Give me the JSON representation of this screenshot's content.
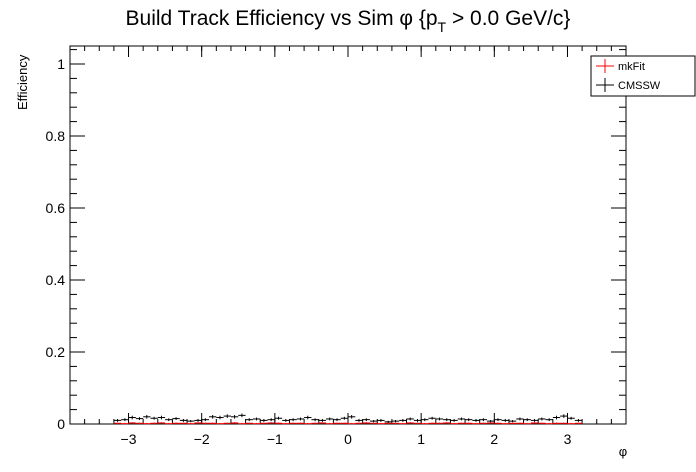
{
  "chart_data": {
    "type": "scatter",
    "title": "Build Track Efficiency vs Sim φ {p_T > 0.0 GeV/c}",
    "title_parts": {
      "main": "Build Track Efficiency vs Sim φ {p",
      "sub": "T",
      "rest": " > 0.0 GeV/c}"
    },
    "xlabel": "φ",
    "ylabel": "Efficiency",
    "xlim": [
      -3.8,
      3.8
    ],
    "ylim": [
      0,
      1.05
    ],
    "xticks": [
      -3,
      -2,
      -1,
      0,
      1,
      2,
      3
    ],
    "xtick_labels": [
      "−3",
      "−2",
      "−1",
      "0",
      "1",
      "2",
      "3"
    ],
    "yticks": [
      0,
      0.2,
      0.4,
      0.6,
      0.8,
      1
    ],
    "ytick_labels": [
      "0",
      "0.2",
      "0.4",
      "0.6",
      "0.8",
      "1"
    ],
    "legend_placement": "top-right",
    "grid": false,
    "bin_half_width": 0.05,
    "series": [
      {
        "name": "mkFit",
        "color": "#ff0000",
        "x": [
          -3.15,
          -3.05,
          -2.95,
          -2.85,
          -2.75,
          -2.65,
          -2.55,
          -2.45,
          -2.35,
          -2.25,
          -2.15,
          -2.05,
          -1.95,
          -1.85,
          -1.75,
          -1.65,
          -1.55,
          -1.45,
          -1.35,
          -1.25,
          -1.15,
          -1.05,
          -0.95,
          -0.85,
          -0.75,
          -0.65,
          -0.55,
          -0.45,
          -0.35,
          -0.25,
          -0.15,
          -0.05,
          0.05,
          0.15,
          0.25,
          0.35,
          0.45,
          0.55,
          0.65,
          0.75,
          0.85,
          0.95,
          1.05,
          1.15,
          1.25,
          1.35,
          1.45,
          1.55,
          1.65,
          1.75,
          1.85,
          1.95,
          2.05,
          2.15,
          2.25,
          2.35,
          2.45,
          2.55,
          2.65,
          2.75,
          2.85,
          2.95,
          3.05,
          3.15
        ],
        "y": [
          0.002,
          0.001,
          0.003,
          0.002,
          0.001,
          0.002,
          0.003,
          0.001,
          0.002,
          0.002,
          0.001,
          0.003,
          0.002,
          0.002,
          0.001,
          0.002,
          0.003,
          0.001,
          0.002,
          0.001,
          0.002,
          0.003,
          0.002,
          0.001,
          0.002,
          0.002,
          0.001,
          0.002,
          0.003,
          0.001,
          0.002,
          0.002,
          0.001,
          0.002,
          0.003,
          0.002,
          0.001,
          0.002,
          0.002,
          0.001,
          0.003,
          0.002,
          0.001,
          0.002,
          0.002,
          0.003,
          0.001,
          0.002,
          0.002,
          0.001,
          0.002,
          0.003,
          0.002,
          0.001,
          0.002,
          0.002,
          0.001,
          0.003,
          0.002,
          0.001,
          0.002,
          0.002,
          0.001,
          0.002
        ],
        "yerr": [
          0.002,
          0.002,
          0.002,
          0.002,
          0.002,
          0.002,
          0.002,
          0.002,
          0.002,
          0.002,
          0.002,
          0.002,
          0.002,
          0.002,
          0.002,
          0.002,
          0.002,
          0.002,
          0.002,
          0.002,
          0.002,
          0.002,
          0.002,
          0.002,
          0.002,
          0.002,
          0.002,
          0.002,
          0.002,
          0.002,
          0.002,
          0.002,
          0.002,
          0.002,
          0.002,
          0.002,
          0.002,
          0.002,
          0.002,
          0.002,
          0.002,
          0.002,
          0.002,
          0.002,
          0.002,
          0.002,
          0.002,
          0.002,
          0.002,
          0.002,
          0.002,
          0.002,
          0.002,
          0.002,
          0.002,
          0.002,
          0.002,
          0.002,
          0.002,
          0.002,
          0.002,
          0.002,
          0.002,
          0.002
        ]
      },
      {
        "name": "CMSSW",
        "color": "#000000",
        "x": [
          -3.15,
          -3.05,
          -2.95,
          -2.85,
          -2.75,
          -2.65,
          -2.55,
          -2.45,
          -2.35,
          -2.25,
          -2.15,
          -2.05,
          -1.95,
          -1.85,
          -1.75,
          -1.65,
          -1.55,
          -1.45,
          -1.35,
          -1.25,
          -1.15,
          -1.05,
          -0.95,
          -0.85,
          -0.75,
          -0.65,
          -0.55,
          -0.45,
          -0.35,
          -0.25,
          -0.15,
          -0.05,
          0.05,
          0.15,
          0.25,
          0.35,
          0.45,
          0.55,
          0.65,
          0.75,
          0.85,
          0.95,
          1.05,
          1.15,
          1.25,
          1.35,
          1.45,
          1.55,
          1.65,
          1.75,
          1.85,
          1.95,
          2.05,
          2.15,
          2.25,
          2.35,
          2.45,
          2.55,
          2.65,
          2.75,
          2.85,
          2.95,
          3.05,
          3.15
        ],
        "y": [
          0.01,
          0.012,
          0.018,
          0.015,
          0.02,
          0.016,
          0.018,
          0.012,
          0.015,
          0.01,
          0.008,
          0.01,
          0.012,
          0.02,
          0.018,
          0.022,
          0.02,
          0.024,
          0.012,
          0.014,
          0.01,
          0.012,
          0.016,
          0.01,
          0.012,
          0.014,
          0.018,
          0.012,
          0.01,
          0.014,
          0.012,
          0.016,
          0.02,
          0.01,
          0.012,
          0.008,
          0.01,
          0.006,
          0.008,
          0.01,
          0.014,
          0.01,
          0.012,
          0.016,
          0.014,
          0.012,
          0.01,
          0.014,
          0.012,
          0.01,
          0.012,
          0.008,
          0.012,
          0.01,
          0.008,
          0.014,
          0.012,
          0.01,
          0.014,
          0.012,
          0.018,
          0.022,
          0.016,
          0.01
        ],
        "yerr": [
          0.004,
          0.004,
          0.005,
          0.004,
          0.005,
          0.004,
          0.005,
          0.004,
          0.004,
          0.004,
          0.003,
          0.004,
          0.004,
          0.005,
          0.005,
          0.005,
          0.005,
          0.005,
          0.004,
          0.004,
          0.004,
          0.004,
          0.004,
          0.004,
          0.004,
          0.004,
          0.005,
          0.004,
          0.004,
          0.004,
          0.004,
          0.004,
          0.005,
          0.004,
          0.004,
          0.003,
          0.004,
          0.003,
          0.003,
          0.004,
          0.004,
          0.004,
          0.004,
          0.004,
          0.004,
          0.004,
          0.004,
          0.004,
          0.004,
          0.004,
          0.004,
          0.003,
          0.004,
          0.004,
          0.003,
          0.004,
          0.004,
          0.004,
          0.004,
          0.004,
          0.005,
          0.005,
          0.004,
          0.004
        ]
      }
    ]
  }
}
